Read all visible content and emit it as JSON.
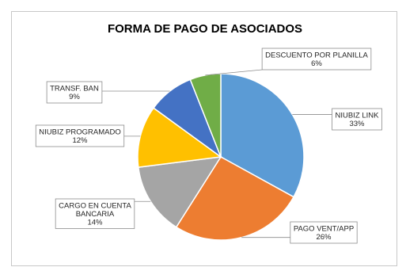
{
  "chart_data": {
    "type": "pie",
    "title": "FORMA DE PAGO DE ASOCIADOS",
    "slices": [
      {
        "label": "NIUBIZ LINK",
        "value": 33,
        "display": "33%",
        "color": "#5b9bd5"
      },
      {
        "label": "PAGO VENT/APP",
        "value": 26,
        "display": "26%",
        "color": "#ed7d31"
      },
      {
        "label": "CARGO EN CUENTA BANCARIA",
        "label_lines": [
          "CARGO EN CUENTA",
          "BANCARIA"
        ],
        "value": 14,
        "display": "14%",
        "color": "#a5a5a5"
      },
      {
        "label": "NIUBIZ PROGRAMADO",
        "value": 12,
        "display": "12%",
        "color": "#ffc000"
      },
      {
        "label": "TRANSF. BAN",
        "value": 9,
        "display": "9%",
        "color": "#4472c4"
      },
      {
        "label": "DESCUENTO POR PLANILLA",
        "value": 6,
        "display": "6%",
        "color": "#70ad47"
      }
    ],
    "legend": "none",
    "data_labels": "callout"
  }
}
